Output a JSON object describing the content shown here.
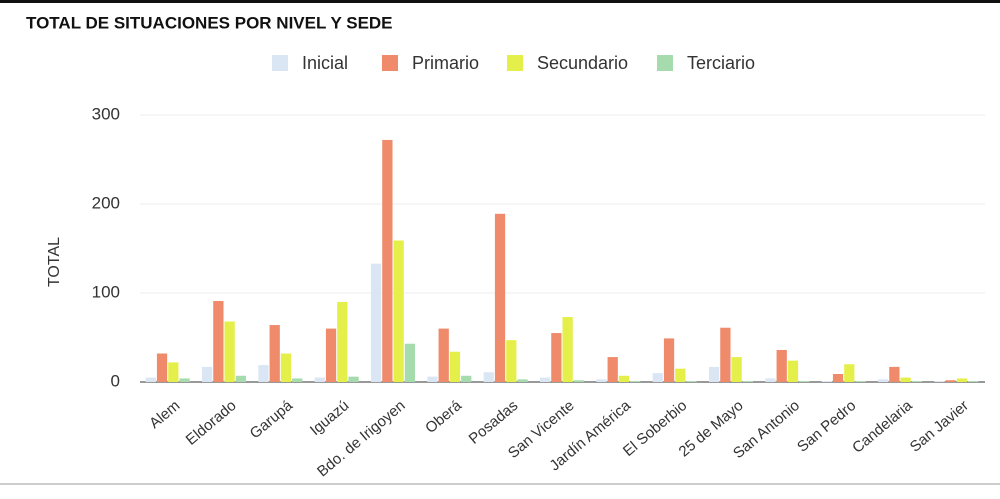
{
  "chart_data": {
    "type": "bar",
    "title": "TOTAL DE SITUACIONES POR NIVEL Y SEDE",
    "y_label": "TOTAL",
    "categories": [
      "Alem",
      "Eldorado",
      "Garupá",
      "Iguazú",
      "Bdo. de Irigoyen",
      "Oberá",
      "Posadas",
      "San Vicente",
      "Jardín América",
      "El Soberbio",
      "25 de Mayo",
      "San Antonio",
      "San Pedro",
      "Candelaria",
      "San Javier"
    ],
    "series": [
      {
        "name": "Inicial",
        "color": "#dbe6f5",
        "values": [
          5,
          17,
          19,
          5,
          133,
          6,
          11,
          5,
          3,
          10,
          17,
          4,
          1,
          3,
          1
        ]
      },
      {
        "name": "Primario",
        "color": "#ef8a6a",
        "values": [
          32,
          91,
          64,
          60,
          272,
          60,
          189,
          55,
          28,
          49,
          61,
          36,
          9,
          17,
          2
        ]
      },
      {
        "name": "Secundario",
        "color": "#e5ef4a",
        "values": [
          22,
          68,
          32,
          90,
          159,
          34,
          47,
          73,
          7,
          15,
          28,
          24,
          20,
          5,
          4
        ]
      },
      {
        "name": "Terciario",
        "color": "#a6dbad",
        "values": [
          4,
          7,
          4,
          6,
          43,
          7,
          3,
          2,
          1,
          1,
          1,
          1,
          1,
          1,
          1
        ]
      }
    ],
    "ylim": [
      0,
      300
    ],
    "yticks": [
      0,
      100,
      200,
      300
    ],
    "grid": true,
    "legend": "top"
  }
}
